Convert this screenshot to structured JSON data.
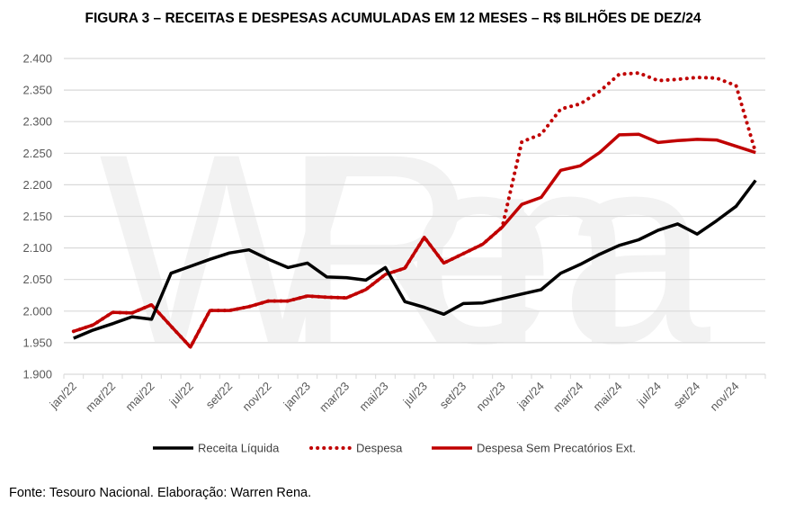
{
  "chart_data": {
    "type": "line",
    "title": "FIGURA 3 – RECEITAS E DESPESAS ACUMULADAS EM 12 MESES – R$ BILHÕES DE DEZ/24",
    "xlabel": "",
    "ylabel": "",
    "ylim": [
      1900,
      2400
    ],
    "yticks": [
      "1.900",
      "1.950",
      "2.000",
      "2.050",
      "2.100",
      "2.150",
      "2.200",
      "2.250",
      "2.300",
      "2.350",
      "2.400"
    ],
    "grid": true,
    "legend_position": "bottom",
    "categories": [
      "jan/22",
      "fev/22",
      "mar/22",
      "abr/22",
      "mai/22",
      "jun/22",
      "jul/22",
      "ago/22",
      "set/22",
      "out/22",
      "nov/22",
      "dez/22",
      "jan/23",
      "fev/23",
      "mar/23",
      "abr/23",
      "mai/23",
      "jun/23",
      "jul/23",
      "ago/23",
      "set/23",
      "out/23",
      "nov/23",
      "dez/23",
      "jan/24",
      "fev/24",
      "mar/24",
      "abr/24",
      "mai/24",
      "jun/24",
      "jul/24",
      "ago/24",
      "set/24",
      "out/24",
      "nov/24",
      "dez/24"
    ],
    "xtick_labels": [
      "jan/22",
      "mar/22",
      "mai/22",
      "jul/22",
      "set/22",
      "nov/22",
      "jan/23",
      "mar/23",
      "mai/23",
      "jul/23",
      "set/23",
      "nov/23",
      "jan/24",
      "mar/24",
      "mai/24",
      "jul/24",
      "set/24",
      "nov/24"
    ],
    "series": [
      {
        "name": "Receita Líquida",
        "color": "#000000",
        "style": "solid",
        "values": [
          1957,
          1970,
          1980,
          1991,
          1987,
          2060,
          2071,
          2082,
          2092,
          2097,
          2082,
          2069,
          2076,
          2054,
          2053,
          2049,
          2069,
          2015,
          2006,
          1995,
          2012,
          2013,
          2020,
          2027,
          2034,
          2060,
          2074,
          2090,
          2104,
          2113,
          2128,
          2138,
          2122,
          2143,
          2166,
          2207
        ]
      },
      {
        "name": "Despesa",
        "color": "#c00000",
        "style": "dotted",
        "values": [
          1968,
          1978,
          1998,
          1997,
          2010,
          1976,
          1943,
          2001,
          2001,
          2007,
          2016,
          2016,
          2024,
          2022,
          2021,
          2034,
          2058,
          2068,
          2117,
          2076,
          2091,
          2106,
          2133,
          2268,
          2280,
          2320,
          2328,
          2348,
          2375,
          2377,
          2365,
          2367,
          2370,
          2369,
          2357,
          2251
        ]
      },
      {
        "name": "Despesa Sem Precatórios Ext.",
        "color": "#c00000",
        "style": "solid",
        "values": [
          1968,
          1978,
          1998,
          1997,
          2010,
          1976,
          1943,
          2001,
          2001,
          2007,
          2016,
          2016,
          2024,
          2022,
          2021,
          2034,
          2058,
          2068,
          2117,
          2076,
          2091,
          2106,
          2133,
          2169,
          2180,
          2223,
          2230,
          2251,
          2279,
          2280,
          2267,
          2270,
          2272,
          2271,
          2261,
          2251
        ]
      }
    ]
  },
  "watermark": "W Rena",
  "source": "Fonte: Tesouro Nacional. Elaboração: Warren Rena."
}
